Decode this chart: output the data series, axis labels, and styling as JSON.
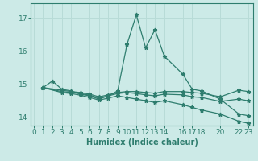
{
  "bg_color": "#cceae7",
  "line_color": "#2e7d6e",
  "grid_color": "#b8dbd7",
  "xlabel": "Humidex (Indice chaleur)",
  "ylim": [
    13.75,
    17.45
  ],
  "xlim": [
    -0.3,
    23.5
  ],
  "yticks": [
    14,
    15,
    16,
    17
  ],
  "xtick_positions": [
    0,
    1,
    2,
    3,
    4,
    5,
    6,
    7,
    8,
    9,
    10,
    11,
    12,
    13,
    14,
    16,
    17,
    18,
    20,
    22,
    23
  ],
  "xtick_labels": [
    "0",
    "1",
    "2",
    "3",
    "4",
    "5",
    "6",
    "7",
    "8",
    "9",
    "10",
    "11",
    "12",
    "13",
    "14",
    "16",
    "17",
    "18",
    "20",
    "22",
    "23"
  ],
  "series": [
    {
      "comment": "top line - big peaks at 10=16.2, 11=17.1, 12=16.1, 13=16.65",
      "x": [
        1,
        2,
        3,
        4,
        5,
        6,
        7,
        8,
        9,
        10,
        11,
        12,
        13,
        14,
        16,
        17,
        18,
        20,
        22,
        23
      ],
      "y": [
        14.9,
        15.1,
        14.85,
        14.8,
        14.7,
        14.65,
        14.55,
        14.65,
        14.8,
        16.2,
        17.1,
        16.1,
        16.65,
        15.85,
        15.3,
        14.85,
        14.8,
        14.55,
        14.1,
        14.05
      ]
    },
    {
      "x": [
        1,
        3,
        4,
        5,
        6,
        7,
        8,
        9,
        10,
        11,
        12,
        13,
        14,
        16,
        17,
        18,
        20,
        22,
        23
      ],
      "y": [
        14.9,
        14.82,
        14.78,
        14.75,
        14.7,
        14.62,
        14.68,
        14.75,
        14.78,
        14.78,
        14.75,
        14.73,
        14.78,
        14.78,
        14.75,
        14.73,
        14.62,
        14.82,
        14.78
      ]
    },
    {
      "x": [
        1,
        3,
        4,
        5,
        6,
        7,
        8,
        9,
        10,
        11,
        12,
        13,
        14,
        16,
        17,
        18,
        20,
        22,
        23
      ],
      "y": [
        14.9,
        14.78,
        14.75,
        14.72,
        14.67,
        14.58,
        14.65,
        14.72,
        14.75,
        14.72,
        14.68,
        14.65,
        14.7,
        14.68,
        14.62,
        14.6,
        14.48,
        14.55,
        14.5
      ]
    },
    {
      "x": [
        1,
        3,
        4,
        5,
        6,
        7,
        8,
        9,
        10,
        11,
        12,
        13,
        14,
        16,
        17,
        18,
        20,
        22,
        23
      ],
      "y": [
        14.9,
        14.75,
        14.72,
        14.67,
        14.6,
        14.52,
        14.58,
        14.65,
        14.6,
        14.55,
        14.5,
        14.45,
        14.5,
        14.38,
        14.3,
        14.22,
        14.1,
        13.88,
        13.82
      ]
    }
  ]
}
